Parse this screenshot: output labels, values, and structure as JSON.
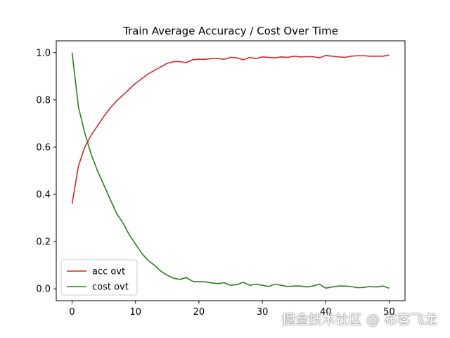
{
  "chart_data": {
    "type": "line",
    "title": "Train Average Accuracy / Cost Over Time",
    "xlabel": "",
    "ylabel": "",
    "xlim": [
      -2.5,
      52.5
    ],
    "ylim": [
      -0.05,
      1.05
    ],
    "xticks": [
      0,
      10,
      20,
      30,
      40,
      50
    ],
    "yticks": [
      0.0,
      0.2,
      0.4,
      0.6,
      0.8,
      1.0
    ],
    "xtick_labels": [
      "0",
      "10",
      "20",
      "30",
      "40",
      "50"
    ],
    "ytick_labels": [
      "0.0",
      "0.2",
      "0.4",
      "0.6",
      "0.8",
      "1.0"
    ],
    "grid": false,
    "legend_position": "lower-left",
    "x": [
      0,
      1,
      2,
      3,
      4,
      5,
      6,
      7,
      8,
      9,
      10,
      11,
      12,
      13,
      14,
      15,
      16,
      17,
      18,
      19,
      20,
      21,
      22,
      23,
      24,
      25,
      26,
      27,
      28,
      29,
      30,
      31,
      32,
      33,
      34,
      35,
      36,
      37,
      38,
      39,
      40,
      41,
      42,
      43,
      44,
      45,
      46,
      47,
      48,
      49,
      50
    ],
    "series": [
      {
        "name": "acc ovt",
        "color": "#d62728",
        "values": [
          0.36,
          0.52,
          0.6,
          0.65,
          0.69,
          0.73,
          0.765,
          0.795,
          0.82,
          0.845,
          0.87,
          0.89,
          0.91,
          0.925,
          0.94,
          0.955,
          0.962,
          0.962,
          0.958,
          0.97,
          0.972,
          0.972,
          0.975,
          0.975,
          0.972,
          0.98,
          0.978,
          0.97,
          0.98,
          0.975,
          0.982,
          0.98,
          0.978,
          0.982,
          0.98,
          0.985,
          0.982,
          0.983,
          0.983,
          0.978,
          0.988,
          0.985,
          0.982,
          0.98,
          0.985,
          0.987,
          0.987,
          0.985,
          0.985,
          0.985,
          0.99
        ]
      },
      {
        "name": "cost ovt",
        "color": "#2c7d1f",
        "values": [
          1.0,
          0.77,
          0.66,
          0.57,
          0.5,
          0.44,
          0.38,
          0.32,
          0.28,
          0.23,
          0.19,
          0.15,
          0.12,
          0.1,
          0.075,
          0.058,
          0.045,
          0.04,
          0.048,
          0.032,
          0.03,
          0.03,
          0.025,
          0.022,
          0.026,
          0.015,
          0.018,
          0.028,
          0.015,
          0.02,
          0.015,
          0.01,
          0.02,
          0.015,
          0.01,
          0.012,
          0.012,
          0.008,
          0.012,
          0.02,
          0.003,
          0.008,
          0.012,
          0.012,
          0.01,
          0.005,
          0.006,
          0.01,
          0.008,
          0.012,
          0.003
        ]
      }
    ]
  },
  "watermark": "掘金技术社区 @ 布客飞龙"
}
